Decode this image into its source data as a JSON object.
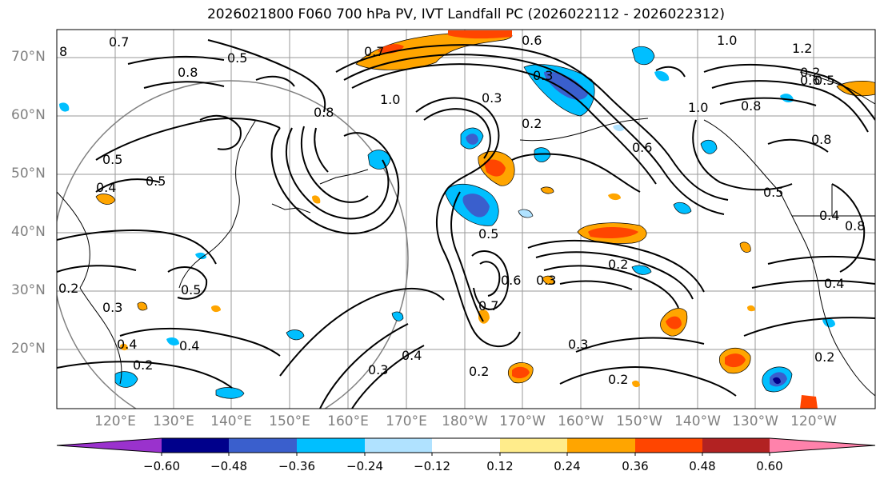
{
  "title": "2026021800 F060 700 hPa PV, IVT Landfall PC (2026022112 - 2026022312)",
  "latitude_labels": [
    "70°N",
    "60°N",
    "50°N",
    "40°N",
    "30°N",
    "20°N"
  ],
  "longitude_labels": [
    "120°E",
    "130°E",
    "140°E",
    "150°E",
    "160°E",
    "170°E",
    "180°W",
    "170°W",
    "160°W",
    "150°W",
    "140°W",
    "130°W",
    "120°W"
  ],
  "colorbar": {
    "ticks": [
      "−0.60",
      "−0.48",
      "−0.36",
      "−0.24",
      "−0.12",
      "0.12",
      "0.24",
      "0.36",
      "0.48",
      "0.60"
    ],
    "colors": [
      "#9a32cd",
      "#00008b",
      "#3a5fcd",
      "#00bfff",
      "#b0e2ff",
      "#ffffff",
      "#ffec8b",
      "#ffa500",
      "#ff4500",
      "#b22222",
      "#ff82ab"
    ]
  },
  "contour_labels": [
    "0.7",
    "0.7",
    "0.6",
    "1.0",
    "1.2",
    "0.6",
    "0.5",
    "1.0",
    "0.8",
    "1.0",
    "0.8",
    "0.3",
    "0.2",
    "0.6",
    "0.8",
    "0.8",
    "0.5",
    "0.4",
    "0.5",
    "0.5",
    "0.4",
    "0.4",
    "0.5",
    "0.8",
    "0.2",
    "0.3",
    "0.3",
    "0.7",
    "0.6",
    "0.5",
    "0.2",
    "0.4",
    "0.2",
    "0.3",
    "0.4",
    "0.3",
    "0.2",
    "0.2",
    "0.4",
    "0.2",
    "0.2",
    "0.3",
    "0.5",
    "8"
  ]
}
